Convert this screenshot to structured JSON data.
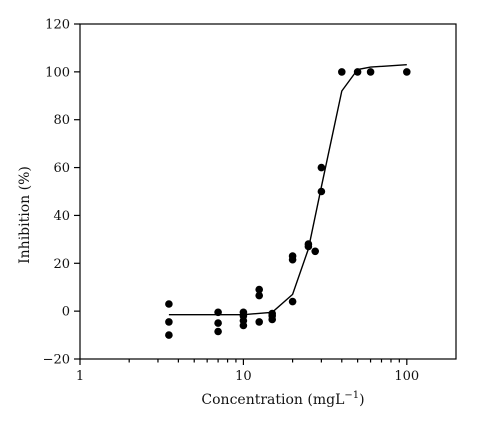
{
  "chart_data": {
    "type": "scatter",
    "title": "",
    "xlabel": "Concentration (mgL",
    "xlabel_sup": "−1",
    "xlabel_close": ")",
    "ylabel": "Inhibition (%)",
    "xscale": "log",
    "xlim": [
      1,
      200
    ],
    "ylim": [
      -20,
      120
    ],
    "xticks": [
      1,
      10,
      100
    ],
    "xtick_labels": [
      "1",
      "10",
      "100"
    ],
    "yticks": [
      -20,
      0,
      20,
      40,
      60,
      80,
      100,
      120
    ],
    "ytick_labels": [
      "−20",
      "0",
      "20",
      "40",
      "60",
      "80",
      "100",
      "120"
    ],
    "grid": false,
    "legend": "none",
    "series": [
      {
        "kind": "points",
        "x": [
          3.5,
          3.5,
          3.5,
          7,
          7,
          7,
          10,
          10,
          10,
          10,
          12.5,
          12.5,
          12.5,
          15,
          15,
          15,
          20,
          20,
          20,
          25,
          25,
          27.5,
          30,
          30,
          40,
          50,
          60,
          100
        ],
        "y": [
          3,
          -4.5,
          -10,
          -0.5,
          -5,
          -8.5,
          -0.5,
          -2,
          -4,
          -6,
          9,
          6.5,
          -4.5,
          -1,
          -2,
          -3.5,
          23,
          21.5,
          4,
          28,
          27,
          25,
          60,
          50,
          100,
          100,
          100,
          100
        ]
      },
      {
        "kind": "fit-line",
        "x": [
          3.5,
          10,
          15,
          20,
          25,
          30,
          40,
          50,
          60,
          100
        ],
        "y": [
          -1.5,
          -1.5,
          -0.5,
          7,
          26,
          52,
          92,
          101,
          102,
          103
        ]
      }
    ]
  }
}
